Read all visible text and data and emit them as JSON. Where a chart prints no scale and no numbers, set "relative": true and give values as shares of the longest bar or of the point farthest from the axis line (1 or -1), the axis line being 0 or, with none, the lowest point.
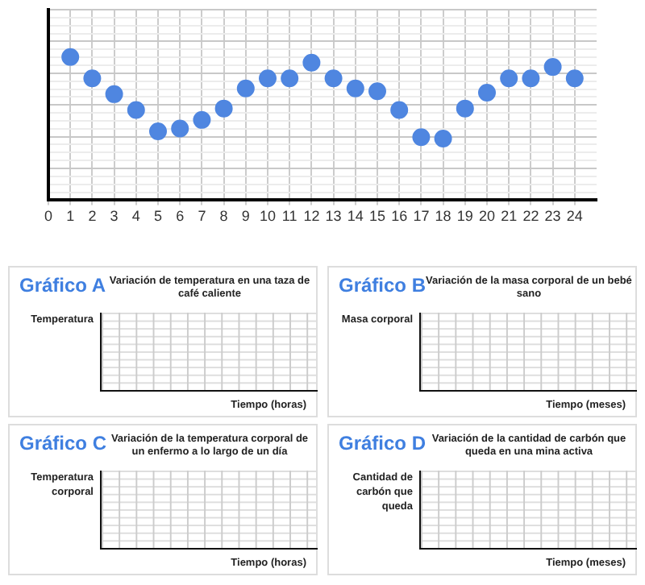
{
  "chart_data": [
    {
      "type": "scatter",
      "x": [
        1,
        2,
        3,
        4,
        5,
        6,
        7,
        8,
        9,
        10,
        11,
        12,
        13,
        14,
        15,
        16,
        17,
        18,
        19,
        20,
        21,
        22,
        23,
        24
      ],
      "values": [
        1,
        0.85,
        0.74,
        0.63,
        0.48,
        0.5,
        0.56,
        0.64,
        0.78,
        0.85,
        0.85,
        0.96,
        0.85,
        0.78,
        0.76,
        0.63,
        0.44,
        0.43,
        0.64,
        0.75,
        0.85,
        0.85,
        0.93,
        0.85
      ],
      "color": "#4f86e0",
      "relative": true,
      "xlim": [
        0,
        25
      ],
      "xticks": [
        0,
        1,
        2,
        3,
        4,
        5,
        6,
        7,
        8,
        9,
        10,
        11,
        12,
        13,
        14,
        15,
        16,
        17,
        18,
        19,
        20,
        21,
        22,
        23,
        24
      ],
      "grid": true,
      "legend": false,
      "marker": "circle",
      "tick_labels": "x"
    },
    {
      "type": "other",
      "annotations": [
        "Gráfico A"
      ],
      "title": "Variación de temperatura en una taza de café caliente",
      "ylabel": "Temperatura",
      "xlabel": "Tiempo  (horas)"
    },
    {
      "type": "other",
      "annotations": [
        "Gráfico B"
      ],
      "title": "Variación de la masa corporal de un bebé sano",
      "ylabel": "Masa corporal",
      "xlabel": "Tiempo  (meses)"
    },
    {
      "type": "other",
      "annotations": [
        "Gráfico C"
      ],
      "title": "Variación de la temperatura corporal de un enfermo a lo largo de un día",
      "ylabel": "Temperatura corporal",
      "xlabel": "Tiempo  (horas)"
    },
    {
      "type": "other",
      "annotations": [
        "Gráfico D"
      ],
      "title": "Variación de la cantidad de carbón que queda en una mina activa",
      "ylabel": "Cantidad de carbón que queda",
      "xlabel": "Tiempo  (meses)"
    }
  ]
}
